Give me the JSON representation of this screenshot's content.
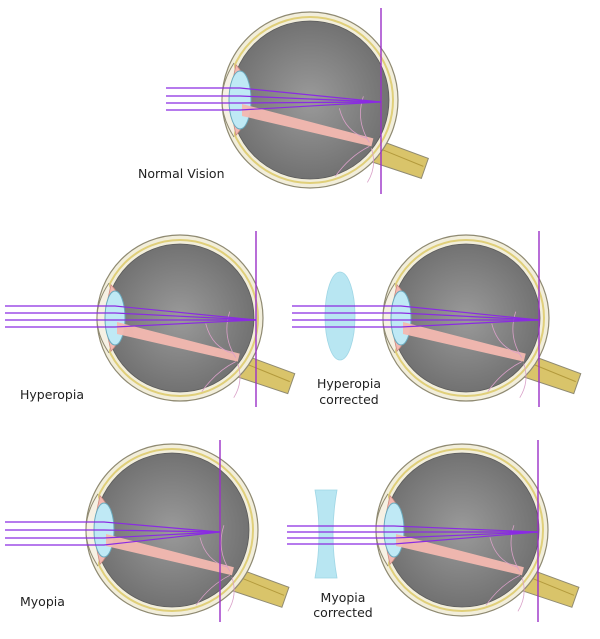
{
  "labels": {
    "normal": "Normal Vision",
    "hyperopia": "Hyperopia",
    "hyperopia_corrected_1": "Hyperopia",
    "hyperopia_corrected_2": "corrected",
    "myopia": "Myopia",
    "myopia_corrected_1": "Myopia",
    "myopia_corrected_2": "corrected"
  },
  "colors": {
    "ray": "#8a2be2",
    "retina_line": "#9b30c8",
    "sclera": "#f2eedb",
    "sclera_stroke": "#8f8a72",
    "vitreous": "#8c8c8c",
    "lens": "#bfe9f5",
    "corrective_lens": "#b8e6f2",
    "optic_nerve": "#d9c46a",
    "muscle": "#f3b8b0",
    "vessels": "#d9a0c8"
  }
}
